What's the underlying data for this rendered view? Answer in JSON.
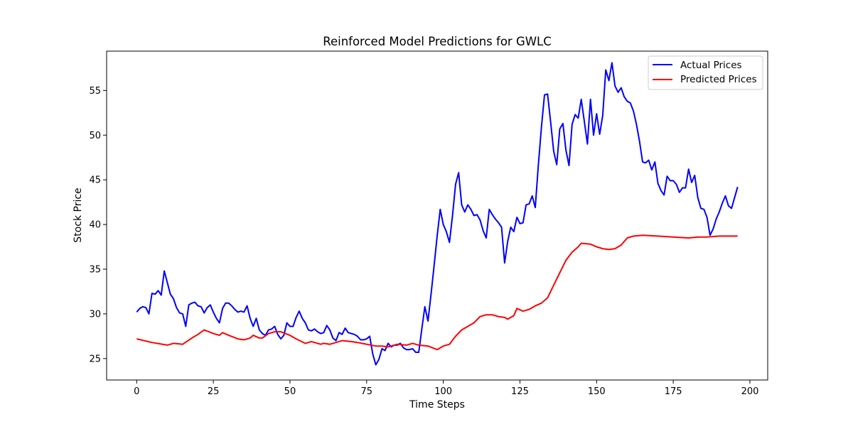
{
  "chart_data": {
    "type": "line",
    "title": "Reinforced Model Predictions for GWLC",
    "xlabel": "Time Steps",
    "ylabel": "Stock Price",
    "xlim": [
      -9.8,
      205.8
    ],
    "ylim": [
      22.6,
      59.4
    ],
    "xticks": [
      0,
      25,
      50,
      75,
      100,
      125,
      150,
      175,
      200
    ],
    "yticks": [
      25,
      30,
      35,
      40,
      45,
      50,
      55
    ],
    "grid": false,
    "legend_position": "upper-right",
    "series": [
      {
        "name": "Actual Prices",
        "color": "#0000ff",
        "points": [
          [
            0,
            30.2
          ],
          [
            1,
            30.6
          ],
          [
            2,
            30.8
          ],
          [
            3,
            30.7
          ],
          [
            4,
            30.0
          ],
          [
            5,
            32.3
          ],
          [
            6,
            32.2
          ],
          [
            7,
            32.6
          ],
          [
            8,
            32.1
          ],
          [
            9,
            34.8
          ],
          [
            10,
            33.5
          ],
          [
            11,
            32.2
          ],
          [
            12,
            31.7
          ],
          [
            13,
            30.7
          ],
          [
            14,
            30.1
          ],
          [
            15,
            30.0
          ],
          [
            16,
            28.6
          ],
          [
            17,
            31.0
          ],
          [
            18,
            31.2
          ],
          [
            19,
            31.3
          ],
          [
            20,
            30.9
          ],
          [
            21,
            30.8
          ],
          [
            22,
            30.1
          ],
          [
            23,
            30.7
          ],
          [
            24,
            31.0
          ],
          [
            25,
            30.2
          ],
          [
            26,
            29.5
          ],
          [
            27,
            29.0
          ],
          [
            28,
            30.6
          ],
          [
            29,
            31.2
          ],
          [
            30,
            31.2
          ],
          [
            31,
            30.9
          ],
          [
            32,
            30.5
          ],
          [
            33,
            30.2
          ],
          [
            34,
            30.3
          ],
          [
            35,
            30.2
          ],
          [
            36,
            30.9
          ],
          [
            37,
            29.5
          ],
          [
            38,
            28.6
          ],
          [
            39,
            29.5
          ],
          [
            40,
            28.2
          ],
          [
            41,
            27.8
          ],
          [
            42,
            27.6
          ],
          [
            43,
            28.2
          ],
          [
            44,
            28.3
          ],
          [
            45,
            28.6
          ],
          [
            46,
            27.7
          ],
          [
            47,
            27.2
          ],
          [
            48,
            27.6
          ],
          [
            49,
            29.0
          ],
          [
            50,
            28.6
          ],
          [
            51,
            28.6
          ],
          [
            52,
            29.6
          ],
          [
            53,
            30.3
          ],
          [
            54,
            29.5
          ],
          [
            55,
            29.0
          ],
          [
            56,
            28.2
          ],
          [
            57,
            28.1
          ],
          [
            58,
            28.3
          ],
          [
            59,
            28.0
          ],
          [
            60,
            27.8
          ],
          [
            61,
            27.9
          ],
          [
            62,
            28.7
          ],
          [
            63,
            28.2
          ],
          [
            64,
            27.3
          ],
          [
            65,
            27.0
          ],
          [
            66,
            27.9
          ],
          [
            67,
            27.7
          ],
          [
            68,
            28.4
          ],
          [
            69,
            27.9
          ],
          [
            70,
            27.8
          ],
          [
            71,
            27.7
          ],
          [
            72,
            27.5
          ],
          [
            73,
            27.1
          ],
          [
            74,
            27.1
          ],
          [
            75,
            27.2
          ],
          [
            76,
            27.5
          ],
          [
            77,
            25.5
          ],
          [
            78,
            24.3
          ],
          [
            79,
            24.9
          ],
          [
            80,
            26.1
          ],
          [
            81,
            25.9
          ],
          [
            82,
            26.7
          ],
          [
            83,
            26.3
          ],
          [
            84,
            26.5
          ],
          [
            85,
            26.5
          ],
          [
            86,
            26.7
          ],
          [
            87,
            26.2
          ],
          [
            88,
            26.0
          ],
          [
            89,
            26.0
          ],
          [
            90,
            26.1
          ],
          [
            91,
            25.7
          ],
          [
            92,
            25.7
          ],
          [
            93,
            28.3
          ],
          [
            94,
            30.8
          ],
          [
            95,
            29.2
          ],
          [
            96,
            32.2
          ],
          [
            97,
            35.4
          ],
          [
            98,
            38.7
          ],
          [
            99,
            41.7
          ],
          [
            100,
            40.0
          ],
          [
            101,
            39.2
          ],
          [
            102,
            38.0
          ],
          [
            103,
            41.0
          ],
          [
            104,
            44.5
          ],
          [
            105,
            45.8
          ],
          [
            106,
            42.2
          ],
          [
            107,
            41.4
          ],
          [
            108,
            42.2
          ],
          [
            109,
            41.7
          ],
          [
            110,
            41.0
          ],
          [
            111,
            41.1
          ],
          [
            112,
            40.5
          ],
          [
            113,
            39.3
          ],
          [
            114,
            38.5
          ],
          [
            115,
            41.7
          ],
          [
            116,
            41.1
          ],
          [
            117,
            40.6
          ],
          [
            118,
            40.2
          ],
          [
            119,
            39.7
          ],
          [
            120,
            35.7
          ],
          [
            121,
            38.1
          ],
          [
            122,
            39.7
          ],
          [
            123,
            39.2
          ],
          [
            124,
            40.8
          ],
          [
            125,
            40.1
          ],
          [
            126,
            40.2
          ],
          [
            127,
            42.2
          ],
          [
            128,
            42.3
          ],
          [
            129,
            43.2
          ],
          [
            130,
            41.9
          ],
          [
            131,
            46.6
          ],
          [
            132,
            50.9
          ],
          [
            133,
            54.5
          ],
          [
            134,
            54.6
          ],
          [
            135,
            51.5
          ],
          [
            136,
            48.2
          ],
          [
            137,
            46.7
          ],
          [
            138,
            50.7
          ],
          [
            139,
            51.3
          ],
          [
            140,
            48.3
          ],
          [
            141,
            46.6
          ],
          [
            142,
            51.2
          ],
          [
            143,
            52.3
          ],
          [
            144,
            51.9
          ],
          [
            145,
            54.0
          ],
          [
            146,
            51.5
          ],
          [
            147,
            49.0
          ],
          [
            148,
            54.0
          ],
          [
            149,
            50.0
          ],
          [
            150,
            52.4
          ],
          [
            151,
            50.1
          ],
          [
            152,
            52.2
          ],
          [
            153,
            57.3
          ],
          [
            154,
            56.1
          ],
          [
            155,
            58.1
          ],
          [
            156,
            55.5
          ],
          [
            157,
            54.8
          ],
          [
            158,
            55.3
          ],
          [
            159,
            54.3
          ],
          [
            160,
            53.8
          ],
          [
            161,
            53.6
          ],
          [
            162,
            52.7
          ],
          [
            163,
            51.2
          ],
          [
            164,
            49.3
          ],
          [
            165,
            47.0
          ],
          [
            166,
            46.9
          ],
          [
            167,
            47.2
          ],
          [
            168,
            46.1
          ],
          [
            169,
            47.0
          ],
          [
            170,
            44.6
          ],
          [
            171,
            43.8
          ],
          [
            172,
            43.3
          ],
          [
            173,
            45.4
          ],
          [
            174,
            44.9
          ],
          [
            175,
            44.9
          ],
          [
            176,
            44.5
          ],
          [
            177,
            43.6
          ],
          [
            178,
            44.1
          ],
          [
            179,
            44.1
          ],
          [
            180,
            46.2
          ],
          [
            181,
            44.7
          ],
          [
            182,
            45.5
          ],
          [
            183,
            43.0
          ],
          [
            184,
            41.8
          ],
          [
            185,
            41.7
          ],
          [
            186,
            40.8
          ],
          [
            187,
            38.8
          ],
          [
            188,
            39.5
          ],
          [
            189,
            40.6
          ],
          [
            190,
            41.4
          ],
          [
            191,
            42.4
          ],
          [
            192,
            43.2
          ],
          [
            193,
            42.1
          ],
          [
            194,
            41.8
          ],
          [
            195,
            43.0
          ],
          [
            196,
            44.2
          ]
        ]
      },
      {
        "name": "Predicted Prices",
        "color": "#ff0000",
        "points": [
          [
            0,
            27.2
          ],
          [
            5,
            26.8
          ],
          [
            10,
            26.5
          ],
          [
            12,
            26.7
          ],
          [
            15,
            26.6
          ],
          [
            18,
            27.3
          ],
          [
            20,
            27.7
          ],
          [
            22,
            28.2
          ],
          [
            25,
            27.8
          ],
          [
            27,
            27.6
          ],
          [
            28,
            27.9
          ],
          [
            30,
            27.6
          ],
          [
            33,
            27.2
          ],
          [
            35,
            27.1
          ],
          [
            37,
            27.3
          ],
          [
            38,
            27.6
          ],
          [
            40,
            27.3
          ],
          [
            41,
            27.3
          ],
          [
            43,
            27.8
          ],
          [
            45,
            28.0
          ],
          [
            47,
            28.0
          ],
          [
            50,
            27.6
          ],
          [
            52,
            27.2
          ],
          [
            55,
            26.7
          ],
          [
            57,
            26.9
          ],
          [
            60,
            26.6
          ],
          [
            61,
            26.7
          ],
          [
            63,
            26.6
          ],
          [
            65,
            26.8
          ],
          [
            67,
            27.0
          ],
          [
            70,
            26.9
          ],
          [
            72,
            26.8
          ],
          [
            75,
            26.6
          ],
          [
            78,
            26.4
          ],
          [
            80,
            26.4
          ],
          [
            82,
            26.3
          ],
          [
            85,
            26.6
          ],
          [
            88,
            26.5
          ],
          [
            90,
            26.7
          ],
          [
            92,
            26.5
          ],
          [
            95,
            26.4
          ],
          [
            98,
            26.0
          ],
          [
            100,
            26.4
          ],
          [
            102,
            26.6
          ],
          [
            104,
            27.5
          ],
          [
            106,
            28.2
          ],
          [
            108,
            28.6
          ],
          [
            110,
            29.0
          ],
          [
            112,
            29.7
          ],
          [
            114,
            29.9
          ],
          [
            116,
            29.9
          ],
          [
            118,
            29.7
          ],
          [
            120,
            29.6
          ],
          [
            121,
            29.4
          ],
          [
            123,
            29.8
          ],
          [
            124,
            30.6
          ],
          [
            126,
            30.3
          ],
          [
            128,
            30.5
          ],
          [
            130,
            30.9
          ],
          [
            132,
            31.2
          ],
          [
            134,
            31.8
          ],
          [
            136,
            33.2
          ],
          [
            138,
            34.6
          ],
          [
            140,
            36.0
          ],
          [
            142,
            36.9
          ],
          [
            144,
            37.5
          ],
          [
            145,
            37.9
          ],
          [
            148,
            37.8
          ],
          [
            150,
            37.5
          ],
          [
            152,
            37.3
          ],
          [
            154,
            37.2
          ],
          [
            156,
            37.3
          ],
          [
            158,
            37.7
          ],
          [
            160,
            38.5
          ],
          [
            162,
            38.7
          ],
          [
            165,
            38.8
          ],
          [
            170,
            38.7
          ],
          [
            175,
            38.6
          ],
          [
            180,
            38.5
          ],
          [
            183,
            38.6
          ],
          [
            186,
            38.6
          ],
          [
            190,
            38.7
          ],
          [
            196,
            38.7
          ]
        ]
      }
    ]
  }
}
